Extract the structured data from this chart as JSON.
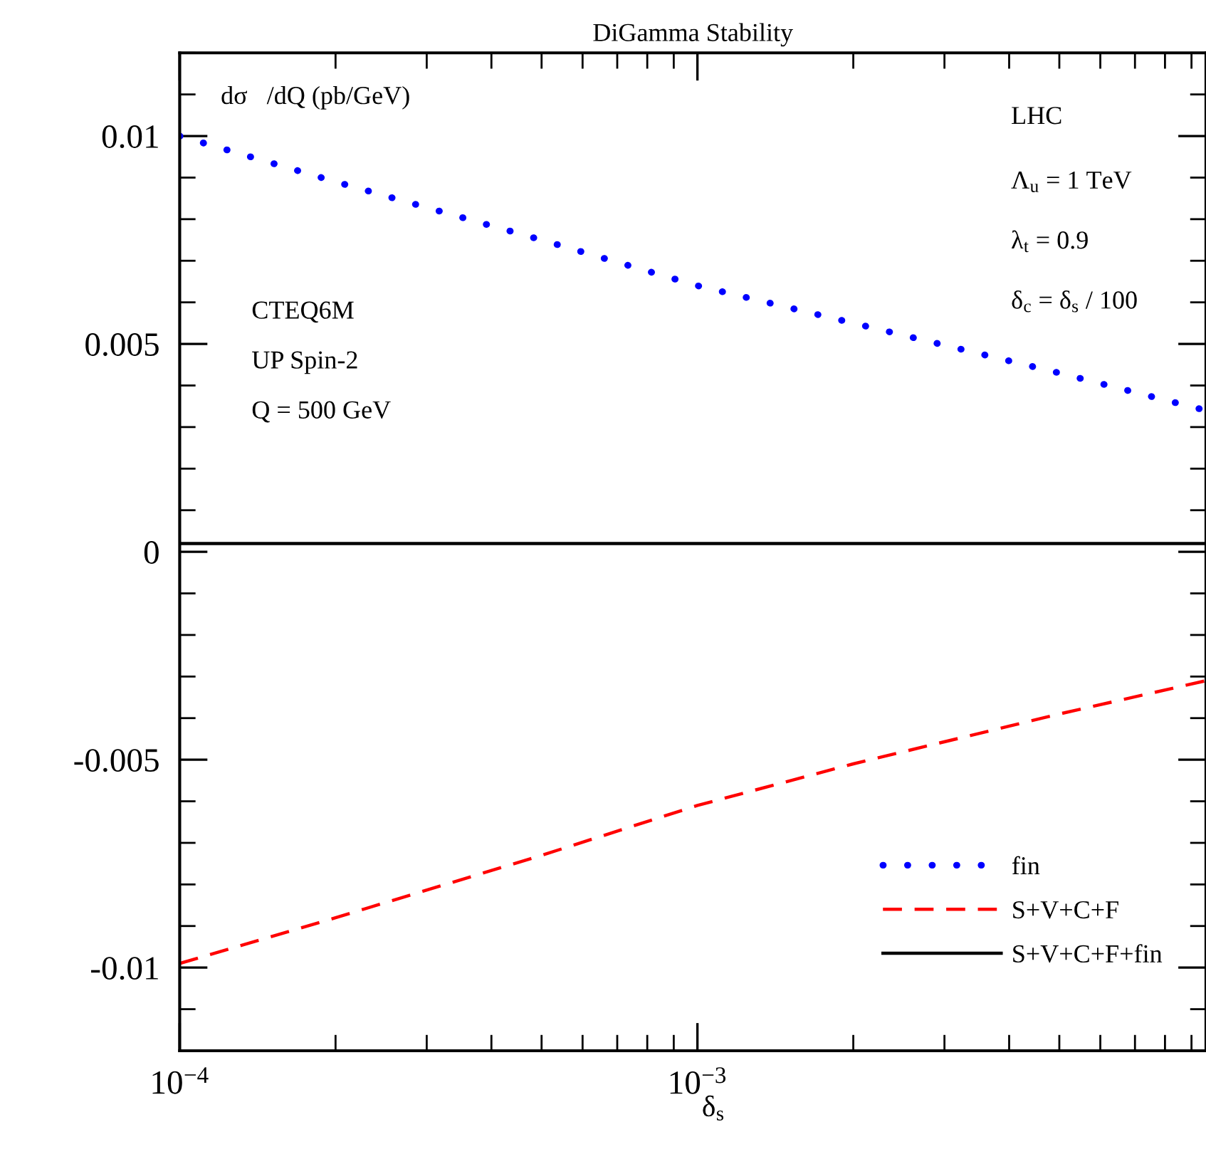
{
  "chart_data": {
    "type": "line",
    "title": "DiGamma Stability",
    "xlabel": "δ$_{s}$",
    "ylabel": "dσ   /dQ (pb/GeV)",
    "x": [
      0.0001,
      0.0002,
      0.0005,
      0.001,
      0.002,
      0.005,
      0.0096
    ],
    "series": [
      {
        "name": "fin",
        "color": "#0000ff",
        "line_style": "dotted",
        "values": [
          0.01,
          0.0089,
          0.0075,
          0.0064,
          0.0055,
          0.0043,
          0.0034
        ]
      },
      {
        "name": "S+V+C+F",
        "color": "#ff0000",
        "line_style": "dashed",
        "values": [
          -0.0099,
          -0.0088,
          -0.0073,
          -0.0061,
          -0.0051,
          -0.0039,
          -0.0031
        ]
      },
      {
        "name": "S+V+C+F+fin",
        "color": "#000000",
        "line_style": "solid",
        "values": [
          0.0002,
          0.0002,
          0.0002,
          0.0002,
          0.0002,
          0.0002,
          0.0002
        ]
      }
    ],
    "log": "x",
    "xlim": [
      0.0001,
      0.0096
    ],
    "xticks": [
      {
        "value": 0.0001,
        "label": "10$^{−4}$"
      },
      {
        "value": 0.001,
        "label": "10$^{−3}$"
      }
    ],
    "ylim": [
      -0.012,
      0.012
    ],
    "yticks": [
      -0.01,
      -0.005,
      0,
      0.005,
      0.01
    ],
    "legend": "bottom right",
    "grid": false,
    "annotations": [
      "CTEQ6M",
      "UP Spin-2",
      "Q = 500 GeV",
      "LHC",
      "Λ$_{u}$ = 1 TeV",
      "λ$_{t}$ = 0.9",
      "δ$_{c}$ = δ$_{s}$ / 100"
    ]
  }
}
